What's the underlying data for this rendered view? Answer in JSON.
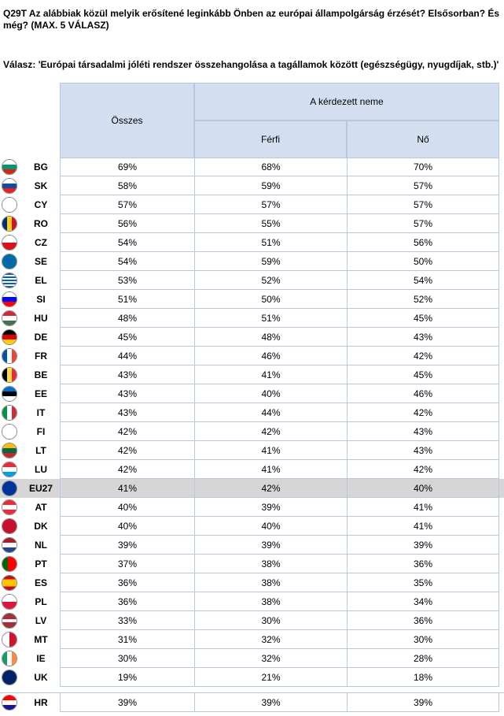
{
  "question": "Q29T Az alábbiak közül melyik erősítené leginkább Önben az európai állampolgárság érzését? Elsősorban? És még? (MAX. 5 VÁLASZ)",
  "answer": "Válasz: 'Európai társadalmi jóléti rendszer összehangolása a tagállamok között (egészségügy, nyugdíjak, stb.)'",
  "table": {
    "col_total": "Összes",
    "group_label": "A kérdezett neme",
    "col_male": "Férfi",
    "col_female": "Nő",
    "rows": [
      {
        "code": "BG",
        "total": "69%",
        "male": "68%",
        "female": "70%",
        "flag": "bg-flag-icon",
        "stripes": "h",
        "colors": [
          "#ffffff",
          "#00966e",
          "#d62612"
        ]
      },
      {
        "code": "SK",
        "total": "58%",
        "male": "59%",
        "female": "57%",
        "flag": "sk-flag-icon",
        "stripes": "h",
        "colors": [
          "#ffffff",
          "#0b4ea2",
          "#ee1c25"
        ]
      },
      {
        "code": "CY",
        "total": "57%",
        "male": "57%",
        "female": "57%",
        "flag": "cy-flag-icon",
        "stripes": "h",
        "colors": [
          "#ffffff",
          "#ffffff",
          "#ffffff"
        ]
      },
      {
        "code": "RO",
        "total": "56%",
        "male": "55%",
        "female": "57%",
        "flag": "ro-flag-icon",
        "stripes": "v",
        "colors": [
          "#002b7f",
          "#fcd116",
          "#ce1126"
        ]
      },
      {
        "code": "CZ",
        "total": "54%",
        "male": "51%",
        "female": "56%",
        "flag": "cz-flag-icon",
        "stripes": "h",
        "colors": [
          "#ffffff",
          "#d7141a"
        ]
      },
      {
        "code": "SE",
        "total": "54%",
        "male": "59%",
        "female": "50%",
        "flag": "se-flag-icon",
        "stripes": "h",
        "colors": [
          "#006aa7"
        ]
      },
      {
        "code": "EL",
        "total": "53%",
        "male": "52%",
        "female": "54%",
        "flag": "gr-flag-icon",
        "stripes": "h",
        "colors": [
          "#0d5eaf",
          "#ffffff",
          "#0d5eaf",
          "#ffffff",
          "#0d5eaf",
          "#ffffff",
          "#0d5eaf",
          "#ffffff",
          "#0d5eaf"
        ]
      },
      {
        "code": "SI",
        "total": "51%",
        "male": "50%",
        "female": "52%",
        "flag": "si-flag-icon",
        "stripes": "h",
        "colors": [
          "#ffffff",
          "#0000ff",
          "#ff0000"
        ]
      },
      {
        "code": "HU",
        "total": "48%",
        "male": "51%",
        "female": "45%",
        "flag": "hu-flag-icon",
        "stripes": "h",
        "colors": [
          "#ce2939",
          "#ffffff",
          "#477050"
        ]
      },
      {
        "code": "DE",
        "total": "45%",
        "male": "48%",
        "female": "43%",
        "flag": "de-flag-icon",
        "stripes": "h",
        "colors": [
          "#000000",
          "#dd0000",
          "#ffce00"
        ]
      },
      {
        "code": "FR",
        "total": "44%",
        "male": "46%",
        "female": "42%",
        "flag": "fr-flag-icon",
        "stripes": "v",
        "colors": [
          "#0055a4",
          "#ffffff",
          "#ef4135"
        ]
      },
      {
        "code": "BE",
        "total": "43%",
        "male": "41%",
        "female": "45%",
        "flag": "be-flag-icon",
        "stripes": "v",
        "colors": [
          "#000000",
          "#fae042",
          "#ed2939"
        ]
      },
      {
        "code": "EE",
        "total": "43%",
        "male": "40%",
        "female": "46%",
        "flag": "ee-flag-icon",
        "stripes": "h",
        "colors": [
          "#0072ce",
          "#000000",
          "#ffffff"
        ]
      },
      {
        "code": "IT",
        "total": "43%",
        "male": "44%",
        "female": "42%",
        "flag": "it-flag-icon",
        "stripes": "v",
        "colors": [
          "#009246",
          "#ffffff",
          "#ce2b37"
        ]
      },
      {
        "code": "FI",
        "total": "42%",
        "male": "42%",
        "female": "43%",
        "flag": "fi-flag-icon",
        "stripes": "h",
        "colors": [
          "#ffffff"
        ]
      },
      {
        "code": "LT",
        "total": "42%",
        "male": "41%",
        "female": "43%",
        "flag": "lt-flag-icon",
        "stripes": "h",
        "colors": [
          "#fdb913",
          "#006a44",
          "#c1272d"
        ]
      },
      {
        "code": "LU",
        "total": "42%",
        "male": "41%",
        "female": "42%",
        "flag": "lu-flag-icon",
        "stripes": "h",
        "colors": [
          "#ed2939",
          "#ffffff",
          "#00a1de"
        ]
      },
      {
        "code": "EU27",
        "total": "41%",
        "male": "42%",
        "female": "40%",
        "flag": "eu-flag-icon",
        "stripes": "h",
        "colors": [
          "#003399"
        ],
        "highlight": true
      },
      {
        "code": "AT",
        "total": "40%",
        "male": "39%",
        "female": "41%",
        "flag": "at-flag-icon",
        "stripes": "h",
        "colors": [
          "#ed2939",
          "#ffffff",
          "#ed2939"
        ]
      },
      {
        "code": "DK",
        "total": "40%",
        "male": "40%",
        "female": "41%",
        "flag": "dk-flag-icon",
        "stripes": "h",
        "colors": [
          "#c8102e"
        ]
      },
      {
        "code": "NL",
        "total": "39%",
        "male": "39%",
        "female": "39%",
        "flag": "nl-flag-icon",
        "stripes": "h",
        "colors": [
          "#ae1c28",
          "#ffffff",
          "#21468b"
        ]
      },
      {
        "code": "PT",
        "total": "37%",
        "male": "38%",
        "female": "36%",
        "flag": "pt-flag-icon",
        "stripes": "pt",
        "colors": [
          "#006600",
          "#ff0000"
        ]
      },
      {
        "code": "ES",
        "total": "36%",
        "male": "38%",
        "female": "35%",
        "flag": "es-flag-icon",
        "stripes": "h",
        "colors": [
          "#c60b1e",
          "#ffc400",
          "#ffc400",
          "#c60b1e"
        ]
      },
      {
        "code": "PL",
        "total": "36%",
        "male": "38%",
        "female": "34%",
        "flag": "pl-flag-icon",
        "stripes": "h",
        "colors": [
          "#ffffff",
          "#dc143c"
        ]
      },
      {
        "code": "LV",
        "total": "33%",
        "male": "30%",
        "female": "36%",
        "flag": "lv-flag-icon",
        "stripes": "h",
        "colors": [
          "#9e3039",
          "#9e3039",
          "#ffffff",
          "#9e3039",
          "#9e3039"
        ]
      },
      {
        "code": "MT",
        "total": "31%",
        "male": "32%",
        "female": "30%",
        "flag": "mt-flag-icon",
        "stripes": "v",
        "colors": [
          "#ffffff",
          "#cf142b"
        ]
      },
      {
        "code": "IE",
        "total": "30%",
        "male": "32%",
        "female": "28%",
        "flag": "ie-flag-icon",
        "stripes": "v",
        "colors": [
          "#169b62",
          "#ffffff",
          "#ff883e"
        ]
      },
      {
        "code": "UK",
        "total": "19%",
        "male": "21%",
        "female": "18%",
        "flag": "uk-flag-icon",
        "stripes": "h",
        "colors": [
          "#012169"
        ]
      },
      {
        "code": "HR",
        "total": "39%",
        "male": "39%",
        "female": "39%",
        "flag": "hr-flag-icon",
        "stripes": "h",
        "colors": [
          "#ff0000",
          "#ffffff",
          "#171796"
        ],
        "separate": true
      }
    ]
  }
}
